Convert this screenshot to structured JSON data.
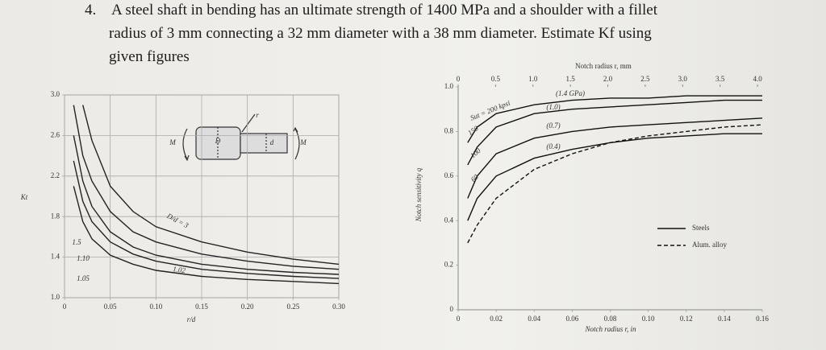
{
  "question": {
    "number": "4.",
    "lines": [
      "A steel shaft in bending has an ultimate strength of 1400 MPa and a shoulder with a fillet",
      "radius of 3 mm connecting a 32 mm diameter with a 38 mm diameter. Estimate Kf using",
      "given figures"
    ]
  },
  "chart_data": [
    {
      "type": "line",
      "xlabel": "r/d",
      "ylabel": "Kt",
      "grid": true,
      "xlim": [
        0,
        0.3
      ],
      "ylim": [
        1,
        3
      ],
      "xticks": [
        0,
        0.05,
        {
          "value": 0.1,
          "label": "0.10"
        },
        0.15,
        {
          "value": 0.2,
          "label": "0.20"
        },
        0.25,
        {
          "value": 0.3,
          "label": "0.30"
        }
      ],
      "yticks": [
        {
          "value": 1,
          "label": "1.0"
        },
        1.4,
        1.8,
        2.2,
        2.6,
        {
          "value": 3,
          "label": "3.0"
        }
      ],
      "x": [
        0.01,
        0.02,
        0.03,
        0.05,
        0.075,
        0.1,
        0.15,
        0.2,
        0.25,
        0.3
      ],
      "series": [
        {
          "color": "#222",
          "values": [
            null,
            2.9,
            2.55,
            2.1,
            1.85,
            1.7,
            1.55,
            1.45,
            1.38,
            1.33
          ]
        },
        {
          "color": "#222",
          "values": [
            2.9,
            2.4,
            2.15,
            1.85,
            1.65,
            1.55,
            1.43,
            1.36,
            1.31,
            1.28
          ]
        },
        {
          "color": "#222",
          "values": [
            2.6,
            2.15,
            1.9,
            1.65,
            1.5,
            1.42,
            1.33,
            1.28,
            1.25,
            1.23
          ]
        },
        {
          "color": "#222",
          "values": [
            2.35,
            1.95,
            1.75,
            1.55,
            1.43,
            1.36,
            1.28,
            1.24,
            1.21,
            1.19
          ]
        },
        {
          "color": "#222",
          "values": [
            2.1,
            1.75,
            1.58,
            1.42,
            1.33,
            1.27,
            1.21,
            1.18,
            1.16,
            1.14
          ]
        }
      ],
      "annotations": [
        "D/d = 3",
        "1.5",
        "1.10",
        "1.05",
        "1.02",
        "M",
        "D",
        "d",
        "M",
        "r"
      ]
    },
    {
      "type": "line",
      "xlabel": "Notch radius r, in",
      "x2label": "Notch radius r, mm",
      "ylabel": "Notch sensitivity q",
      "grid": false,
      "xlim": [
        0,
        0.16
      ],
      "x2lim": [
        0,
        4.064
      ],
      "ylim": [
        0,
        1
      ],
      "xticks": [
        0,
        0.02,
        0.04,
        0.06,
        0.08,
        {
          "value": 0.1,
          "label": "0.10"
        },
        0.12,
        0.14,
        0.16
      ],
      "x2ticks": [
        0,
        0.5,
        {
          "value": 1,
          "label": "1.0"
        },
        1.5,
        {
          "value": 2,
          "label": "2.0"
        },
        2.5,
        {
          "value": 3,
          "label": "3.0"
        },
        3.5,
        {
          "value": 4,
          "label": "4.0"
        }
      ],
      "yticks": [
        0,
        0.2,
        0.4,
        0.6,
        0.8,
        {
          "value": 1,
          "label": "1.0"
        }
      ],
      "x": [
        0.005,
        0.01,
        0.02,
        0.04,
        0.06,
        0.08,
        0.1,
        0.12,
        0.14,
        0.16
      ],
      "series": [
        {
          "color": "#111",
          "dashed": false,
          "values": [
            0.75,
            0.82,
            0.88,
            0.92,
            0.94,
            0.95,
            0.95,
            0.96,
            0.96,
            0.96
          ]
        },
        {
          "color": "#111",
          "dashed": false,
          "values": [
            0.65,
            0.73,
            0.82,
            0.88,
            0.9,
            0.91,
            0.92,
            0.93,
            0.94,
            0.94
          ]
        },
        {
          "color": "#111",
          "dashed": false,
          "values": [
            0.5,
            0.6,
            0.7,
            0.77,
            0.8,
            0.82,
            0.83,
            0.84,
            0.85,
            0.86
          ]
        },
        {
          "color": "#111",
          "dashed": false,
          "values": [
            0.4,
            0.5,
            0.6,
            0.68,
            0.72,
            0.75,
            0.77,
            0.78,
            0.79,
            0.79
          ]
        },
        {
          "color": "#111",
          "dashed": true,
          "values": [
            0.3,
            0.38,
            0.5,
            0.63,
            0.7,
            0.75,
            0.78,
            0.8,
            0.82,
            0.83
          ]
        }
      ],
      "legend": [
        {
          "name": "Steels",
          "dashed": false
        },
        {
          "name": "Alum. alloy",
          "dashed": true
        }
      ],
      "annotations": [
        "Sut = 200 kpsi",
        "(1.4 GPa)",
        "150",
        "(1.0)",
        "100",
        "(0.7)",
        "60",
        "(0.4)"
      ]
    }
  ]
}
